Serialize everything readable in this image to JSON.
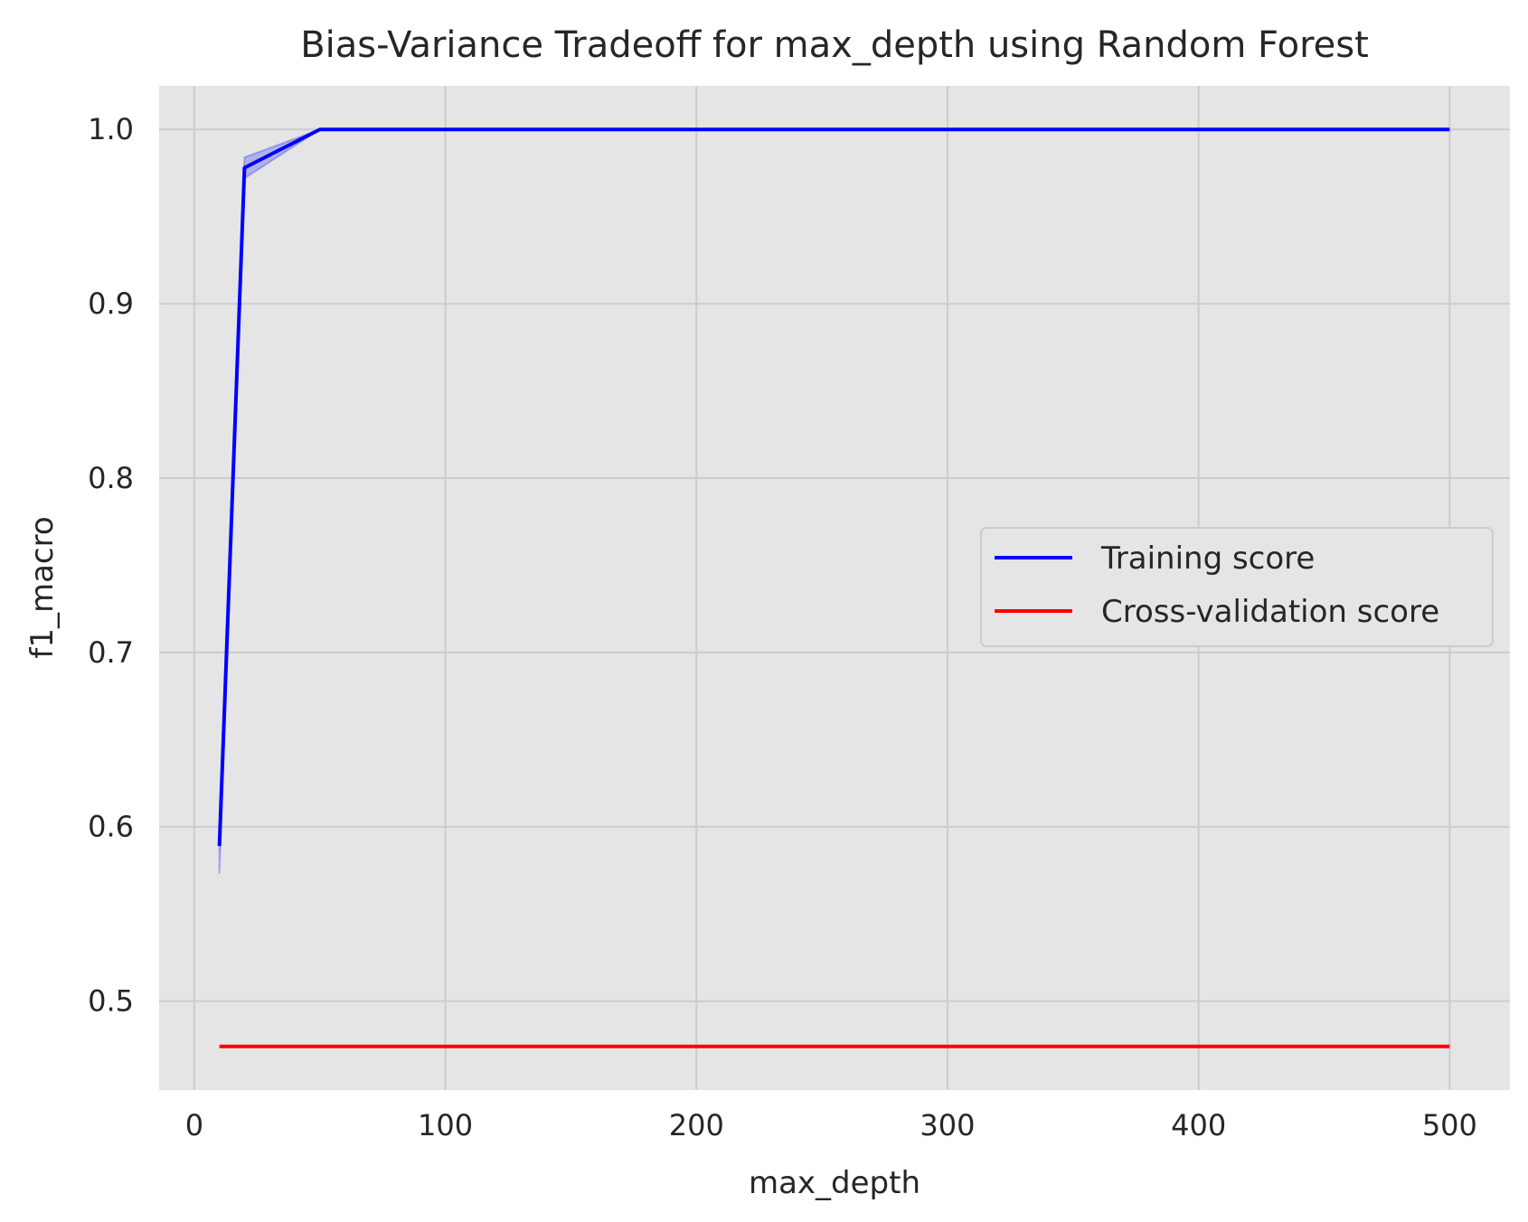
{
  "chart_data": {
    "type": "line",
    "title": "Bias-Variance Tradeoff for max_depth using Random Forest",
    "xlabel": "max_depth",
    "ylabel": "f1_macro",
    "xlim": [
      -14,
      524
    ],
    "ylim": [
      0.449,
      1.025
    ],
    "xticks": [
      0,
      100,
      200,
      300,
      400,
      500
    ],
    "xtick_labels": [
      "0",
      "100",
      "200",
      "300",
      "400",
      "500"
    ],
    "yticks": [
      0.5,
      0.6,
      0.7,
      0.8,
      0.9,
      1.0
    ],
    "ytick_labels": [
      "0.5",
      "0.6",
      "0.7",
      "0.8",
      "0.9",
      "1.0"
    ],
    "grid": true,
    "background": "#e5e5e5",
    "grid_color": "#cccccc",
    "legend_position": "center-right",
    "x": [
      10,
      20,
      50,
      100,
      200,
      300,
      400,
      500
    ],
    "series": [
      {
        "name": "Training score",
        "color": "#0000ff",
        "values": [
          0.589,
          0.978,
          1.0,
          1.0,
          1.0,
          1.0,
          1.0,
          1.0
        ],
        "band_lower": [
          0.573,
          0.972,
          1.0,
          1.0,
          1.0,
          1.0,
          1.0,
          1.0
        ],
        "band_upper": [
          0.597,
          0.984,
          1.0,
          1.0,
          1.0,
          1.0,
          1.0,
          1.0
        ]
      },
      {
        "name": "Cross-validation score",
        "color": "#ff0000",
        "values": [
          0.474,
          0.474,
          0.474,
          0.474,
          0.474,
          0.474,
          0.474,
          0.474
        ]
      }
    ]
  }
}
